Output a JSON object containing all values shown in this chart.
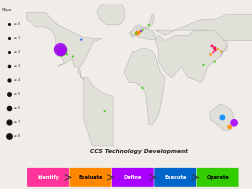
{
  "title": "CCS Technology Development",
  "legend_title": "Mtpa",
  "background_color": "#f0ede8",
  "map_bg": "#d8e8f0",
  "land_color": "#e0e0d8",
  "border_color": "#aaaaaa",
  "map_extent": [
    -170,
    180,
    -60,
    80
  ],
  "dots": [
    {
      "lon": -122,
      "lat": 37,
      "size": 8,
      "color": "#33cc00"
    },
    {
      "lon": -118,
      "lat": 34,
      "size": 5,
      "color": "#33cc00"
    },
    {
      "lon": -119,
      "lat": 35,
      "size": 3,
      "color": "#33cc00"
    },
    {
      "lon": -106,
      "lat": 32,
      "size": 3,
      "color": "#33cc00"
    },
    {
      "lon": -97,
      "lat": 30,
      "size": 3,
      "color": "#33cc00"
    },
    {
      "lon": -112,
      "lat": 36,
      "size": 14,
      "color": "#33cc00"
    },
    {
      "lon": -115,
      "lat": 35,
      "size": 18,
      "color": "#33cc00"
    },
    {
      "lon": -116,
      "lat": 36.5,
      "size": 22,
      "color": "#aa00ff"
    },
    {
      "lon": -114,
      "lat": 34.5,
      "size": 12,
      "color": "#aa00ff"
    },
    {
      "lon": -84,
      "lat": 46,
      "size": 3,
      "color": "#0055ff"
    },
    {
      "lon": 2,
      "lat": 52,
      "size": 7,
      "color": "#ff8800"
    },
    {
      "lon": 5,
      "lat": 53,
      "size": 5,
      "color": "#ff8800"
    },
    {
      "lon": 8,
      "lat": 54,
      "size": 3,
      "color": "#aa00ff"
    },
    {
      "lon": 10,
      "lat": 55,
      "size": 3,
      "color": "#33cc00"
    },
    {
      "lon": 20,
      "lat": 60,
      "size": 3,
      "color": "#33cc00"
    },
    {
      "lon": 0,
      "lat": 52,
      "size": 3,
      "color": "#33cc00"
    },
    {
      "lon": 10,
      "lat": 0,
      "size": 3,
      "color": "#33cc00"
    },
    {
      "lon": -48,
      "lat": -22,
      "size": 3,
      "color": "#33cc00"
    },
    {
      "lon": 121,
      "lat": 38,
      "size": 5,
      "color": "#ff0055"
    },
    {
      "lon": 122,
      "lat": 36,
      "size": 4,
      "color": "#ff0055"
    },
    {
      "lon": 117,
      "lat": 40,
      "size": 4,
      "color": "#ff0055"
    },
    {
      "lon": 119,
      "lat": 34,
      "size": 3,
      "color": "#ff0055"
    },
    {
      "lon": 115,
      "lat": 32,
      "size": 4,
      "color": "#ff8800"
    },
    {
      "lon": 126,
      "lat": 37,
      "size": 3,
      "color": "#ff8800"
    },
    {
      "lon": 131,
      "lat": 35,
      "size": 3,
      "color": "#ff8800"
    },
    {
      "lon": 104,
      "lat": 22,
      "size": 3,
      "color": "#33cc00"
    },
    {
      "lon": 121,
      "lat": 25,
      "size": 3,
      "color": "#33cc00"
    },
    {
      "lon": 151,
      "lat": -33,
      "size": 12,
      "color": "#aa00ff"
    },
    {
      "lon": 144,
      "lat": -37,
      "size": 7,
      "color": "#ff8800"
    },
    {
      "lon": 133,
      "lat": -28,
      "size": 9,
      "color": "#0088ff"
    }
  ],
  "legend_sizes": [
    0,
    1,
    2,
    3,
    4,
    5,
    6,
    7,
    8
  ],
  "stages": [
    {
      "label": "Identify",
      "color": "#ff3399",
      "text_color": "#ffffff"
    },
    {
      "label": "Evaluate",
      "color": "#ff8800",
      "text_color": "#000000"
    },
    {
      "label": "Define",
      "color": "#aa00ff",
      "text_color": "#ffffff"
    },
    {
      "label": "Execute",
      "color": "#0066cc",
      "text_color": "#ffffff"
    },
    {
      "label": "Operate",
      "color": "#33cc00",
      "text_color": "#000000"
    }
  ]
}
